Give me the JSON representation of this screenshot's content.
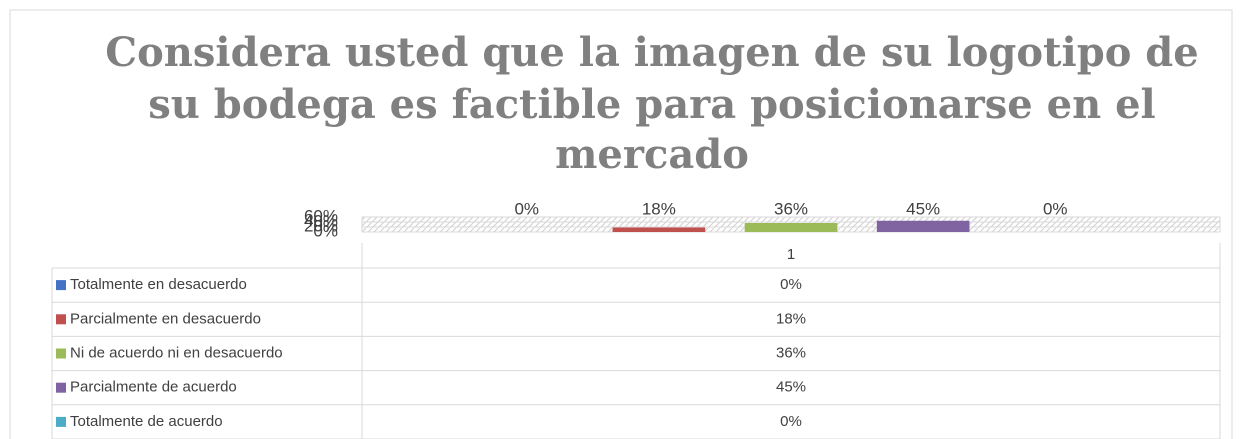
{
  "chart_data": {
    "type": "bar",
    "title": [
      "Considera usted que la imagen de su logotipo de",
      "su  bodega es factible para posicionarse en el",
      "mercado"
    ],
    "categories": [
      "1"
    ],
    "ylim": [
      0,
      60
    ],
    "yticks": [
      {
        "value": 0,
        "label": "0%"
      },
      {
        "value": 20,
        "label": "20%"
      },
      {
        "value": 40,
        "label": "40%"
      },
      {
        "value": 60,
        "label": "60%"
      }
    ],
    "grid": true,
    "series": [
      {
        "name": "Totalmente en desacuerdo",
        "color": "#4472c4",
        "values": [
          0
        ],
        "value_labels": [
          "0%"
        ]
      },
      {
        "name": "Parcialmente en desacuerdo",
        "color": "#c0504d",
        "values": [
          18
        ],
        "value_labels": [
          "18%"
        ]
      },
      {
        "name": "Ni de acuerdo ni en desacuerdo",
        "color": "#9bbb59",
        "values": [
          36
        ],
        "value_labels": [
          "36%"
        ]
      },
      {
        "name": "Parcialmente de acuerdo",
        "color": "#8064a2",
        "values": [
          45
        ],
        "value_labels": [
          "45%"
        ]
      },
      {
        "name": "Totalmente de acuerdo",
        "color": "#4bacc6",
        "values": [
          0
        ],
        "value_labels": [
          "0%"
        ]
      }
    ]
  }
}
